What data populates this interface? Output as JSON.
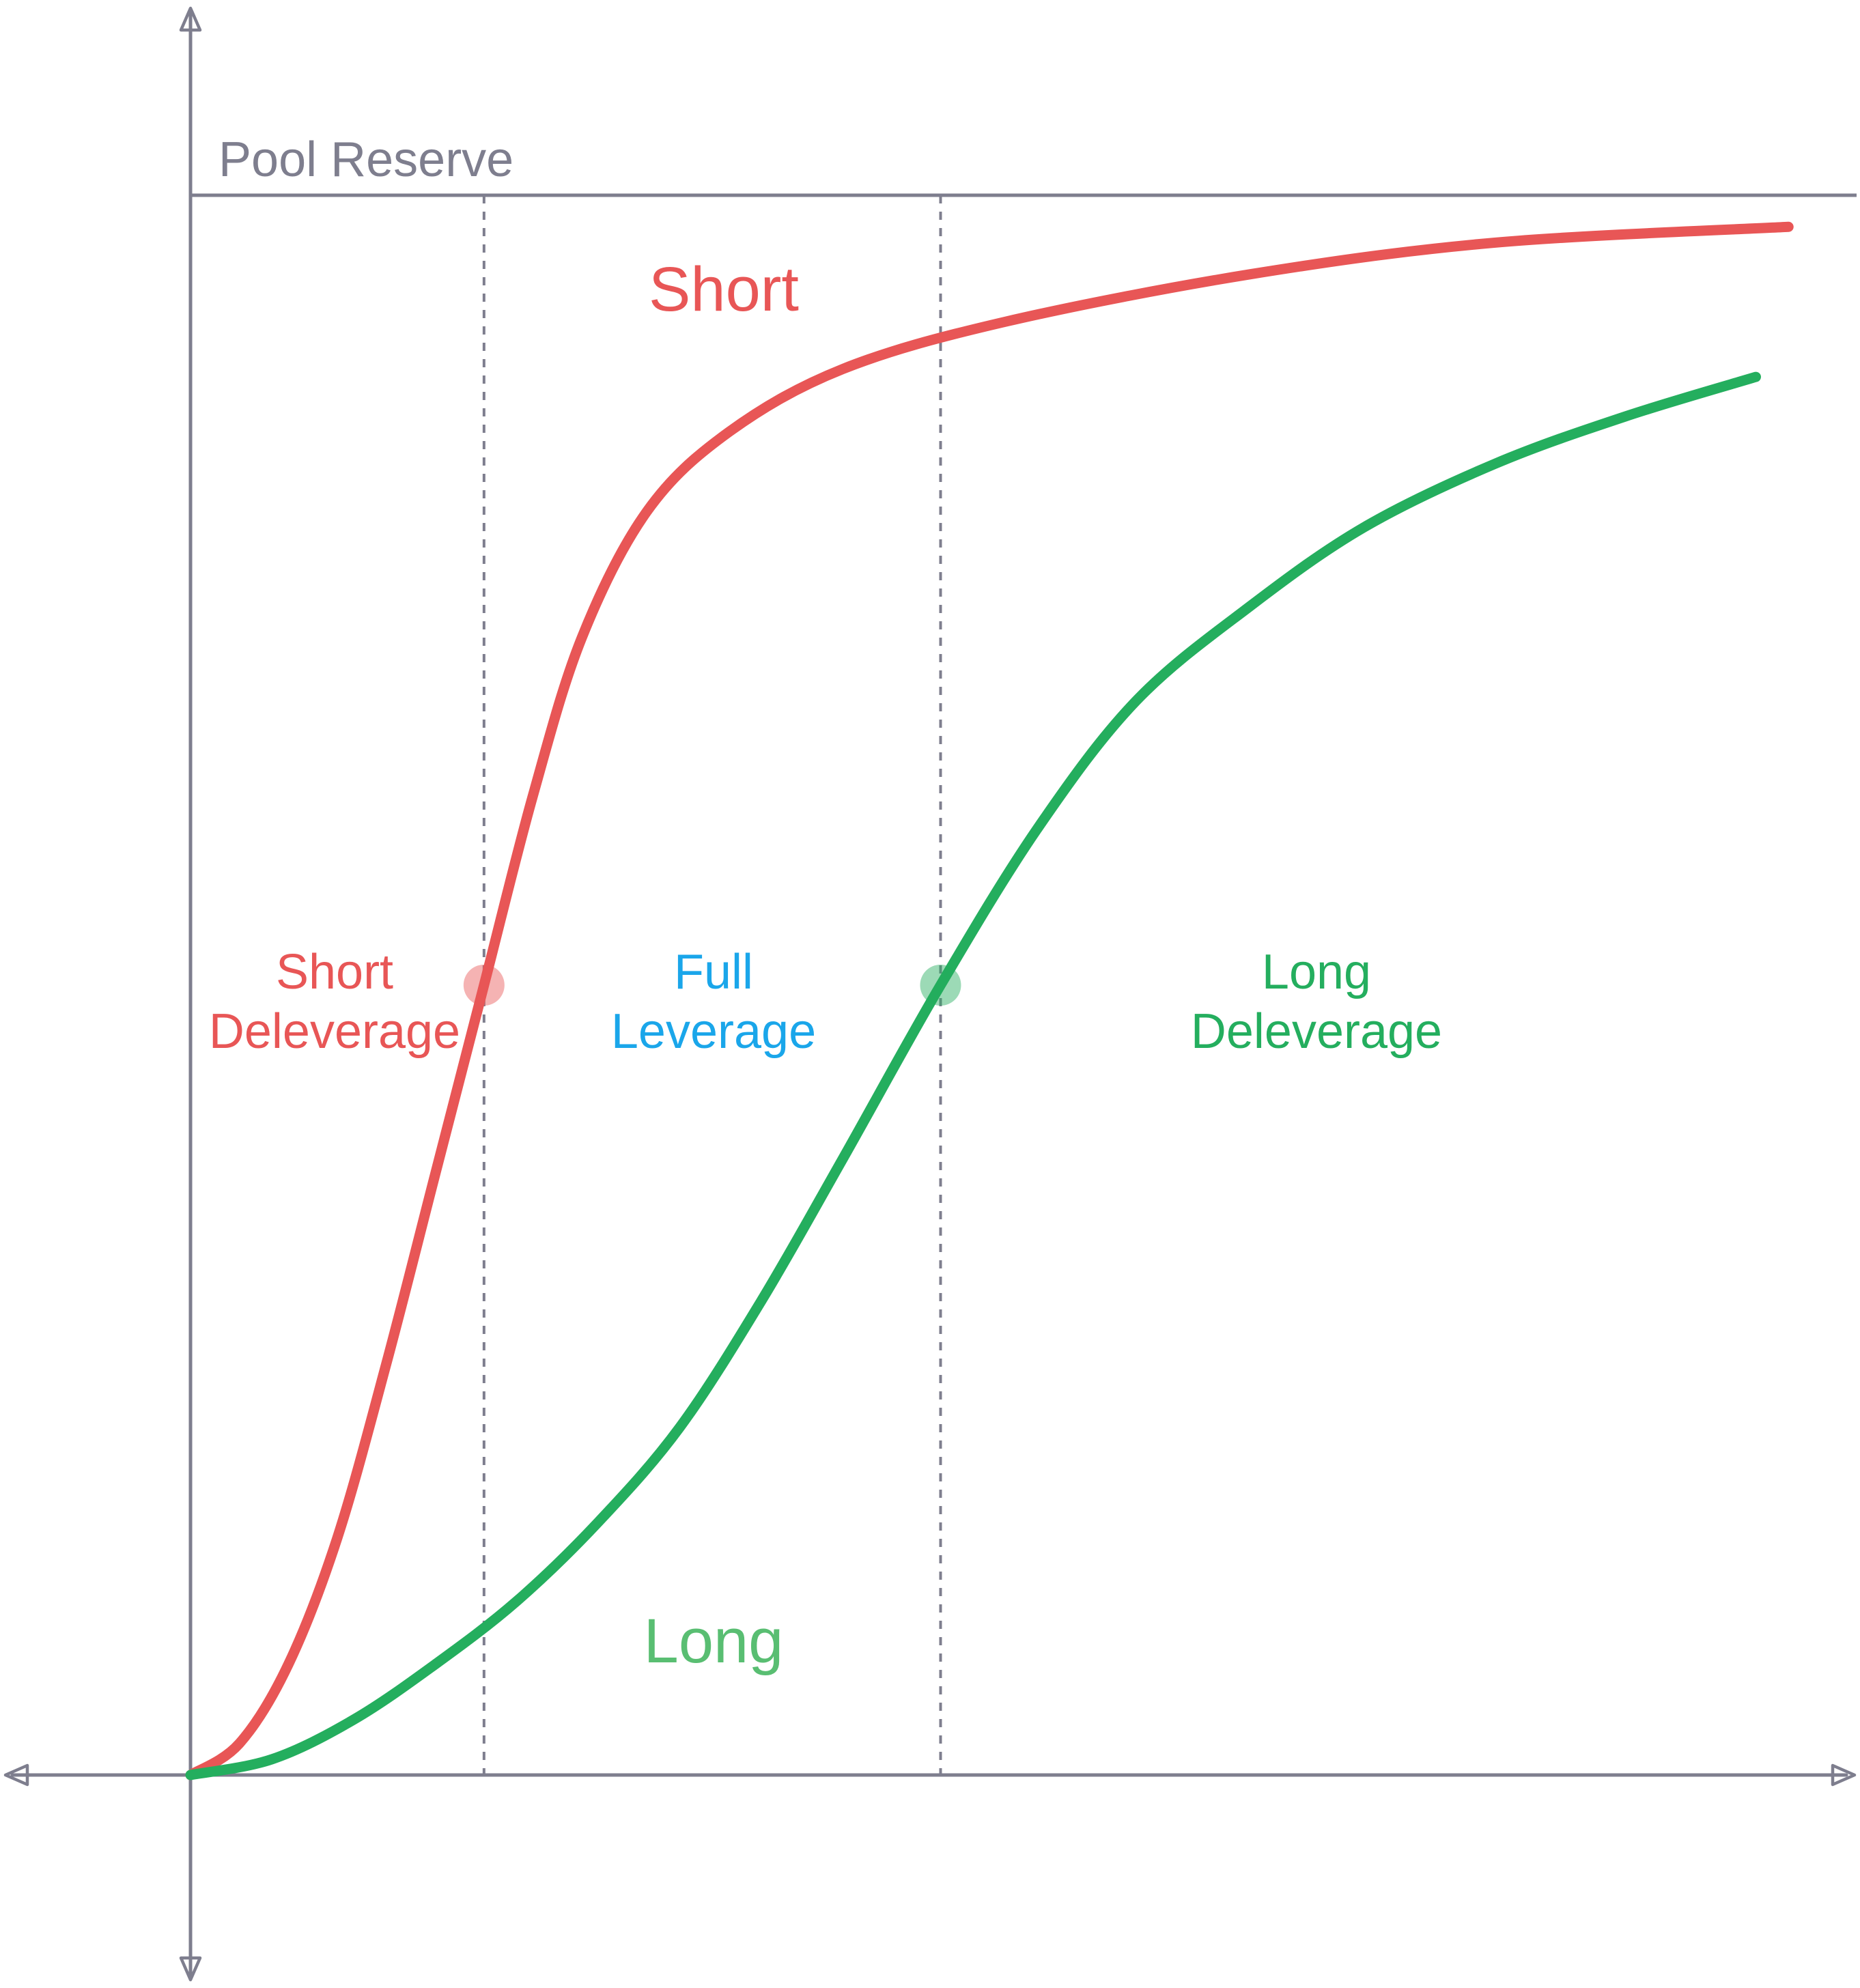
{
  "chart_data": {
    "type": "line",
    "title": "",
    "xlabel": "",
    "ylabel": "",
    "grid": false,
    "reference_line": {
      "label": "Pool Reserve",
      "y": 1.0
    },
    "xlim": [
      0,
      1
    ],
    "ylim": [
      0,
      1
    ],
    "thresholds": [
      {
        "name": "short-threshold",
        "x": 0.18
      },
      {
        "name": "long-threshold",
        "x": 0.46
      }
    ],
    "series": [
      {
        "name": "Short",
        "color": "#E85656",
        "points": [
          [
            0.0,
            0.0
          ],
          [
            0.03,
            0.02
          ],
          [
            0.06,
            0.07
          ],
          [
            0.09,
            0.15
          ],
          [
            0.12,
            0.26
          ],
          [
            0.15,
            0.38
          ],
          [
            0.18,
            0.5
          ],
          [
            0.21,
            0.62
          ],
          [
            0.24,
            0.72
          ],
          [
            0.28,
            0.8
          ],
          [
            0.33,
            0.85
          ],
          [
            0.4,
            0.89
          ],
          [
            0.5,
            0.92
          ],
          [
            0.65,
            0.95
          ],
          [
            0.8,
            0.97
          ],
          [
            0.98,
            0.98
          ]
        ]
      },
      {
        "name": "Long",
        "color": "#24AE5E",
        "points": [
          [
            0.0,
            0.0
          ],
          [
            0.05,
            0.01
          ],
          [
            0.1,
            0.035
          ],
          [
            0.15,
            0.07
          ],
          [
            0.2,
            0.11
          ],
          [
            0.25,
            0.16
          ],
          [
            0.3,
            0.22
          ],
          [
            0.35,
            0.3
          ],
          [
            0.4,
            0.39
          ],
          [
            0.46,
            0.5
          ],
          [
            0.52,
            0.6
          ],
          [
            0.58,
            0.68
          ],
          [
            0.65,
            0.74
          ],
          [
            0.72,
            0.79
          ],
          [
            0.8,
            0.83
          ],
          [
            0.88,
            0.86
          ],
          [
            0.96,
            0.885
          ]
        ]
      }
    ],
    "annotations": {
      "short_series_label": "Short",
      "long_series_label": "Long",
      "regions": [
        {
          "lines": [
            "Short",
            "Deleverage"
          ],
          "color": "#E85656"
        },
        {
          "lines": [
            "Full",
            "Leverage"
          ],
          "color": "#1AA6EA"
        },
        {
          "lines": [
            "Long",
            "Deleverage"
          ],
          "color": "#24AE5E"
        }
      ]
    },
    "colors": {
      "axis": "#7E7E8E",
      "short": "#E85656",
      "long": "#24AE5E",
      "full_leverage": "#1AA6EA"
    }
  }
}
